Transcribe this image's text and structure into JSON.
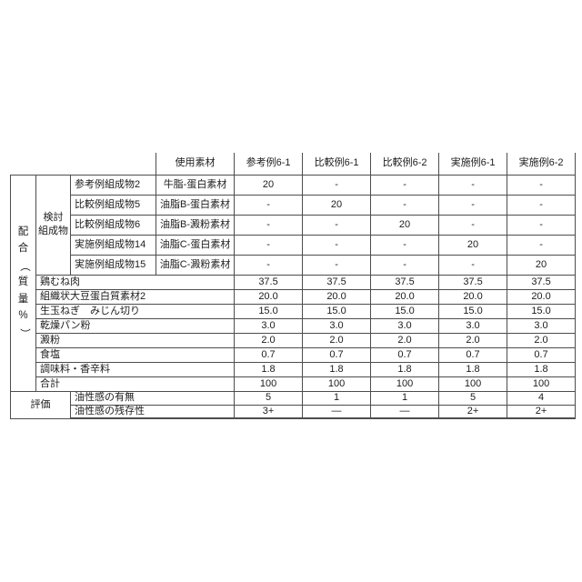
{
  "table": {
    "corner_label": "使用素材",
    "vertical_label": "配合（質量%）",
    "vertical_label_chars": [
      "配",
      "合",
      "（",
      "質",
      "量",
      "%",
      "）"
    ],
    "group_label_line1": "検討",
    "group_label_line2": "組成物",
    "columns": [
      "参考例6-1",
      "比較例6-1",
      "比較例6-2",
      "実施例6-1",
      "実施例6-2"
    ],
    "composition_rows": [
      {
        "name": "参考例組成物2",
        "material": "牛脂-蛋白素材",
        "values": [
          "20",
          "-",
          "-",
          "-",
          "-"
        ]
      },
      {
        "name": "比較例組成物5",
        "material": "油脂B-蛋白素材",
        "values": [
          "-",
          "20",
          "-",
          "-",
          "-"
        ]
      },
      {
        "name": "比較例組成物6",
        "material": "油脂B-澱粉素材",
        "values": [
          "-",
          "-",
          "20",
          "-",
          "-"
        ]
      },
      {
        "name": "実施例組成物14",
        "material": "油脂C-蛋白素材",
        "values": [
          "-",
          "-",
          "-",
          "20",
          "-"
        ]
      },
      {
        "name": "実施例組成物15",
        "material": "油脂C-澱粉素材",
        "values": [
          "-",
          "-",
          "-",
          "-",
          "20"
        ]
      }
    ],
    "ingredient_rows": [
      {
        "name": "鶏むね肉",
        "values": [
          "37.5",
          "37.5",
          "37.5",
          "37.5",
          "37.5"
        ]
      },
      {
        "name": "組織状大豆蛋白質素材2",
        "values": [
          "20.0",
          "20.0",
          "20.0",
          "20.0",
          "20.0"
        ]
      },
      {
        "name": "生玉ねぎ　みじん切り",
        "values": [
          "15.0",
          "15.0",
          "15.0",
          "15.0",
          "15.0"
        ]
      },
      {
        "name": "乾燥パン粉",
        "values": [
          "3.0",
          "3.0",
          "3.0",
          "3.0",
          "3.0"
        ]
      },
      {
        "name": "澱粉",
        "values": [
          "2.0",
          "2.0",
          "2.0",
          "2.0",
          "2.0"
        ]
      },
      {
        "name": "食塩",
        "values": [
          "0.7",
          "0.7",
          "0.7",
          "0.7",
          "0.7"
        ]
      },
      {
        "name": "調味料・香辛料",
        "values": [
          "1.8",
          "1.8",
          "1.8",
          "1.8",
          "1.8"
        ]
      },
      {
        "name": "合計",
        "values": [
          "100",
          "100",
          "100",
          "100",
          "100"
        ]
      }
    ],
    "eval_label": "評価",
    "eval_rows": [
      {
        "name": "油性感の有無",
        "values": [
          "5",
          "1",
          "1",
          "5",
          "4"
        ]
      },
      {
        "name": "油性感の残存性",
        "values": [
          "3+",
          "—",
          "—",
          "2+",
          "2+"
        ]
      }
    ]
  }
}
